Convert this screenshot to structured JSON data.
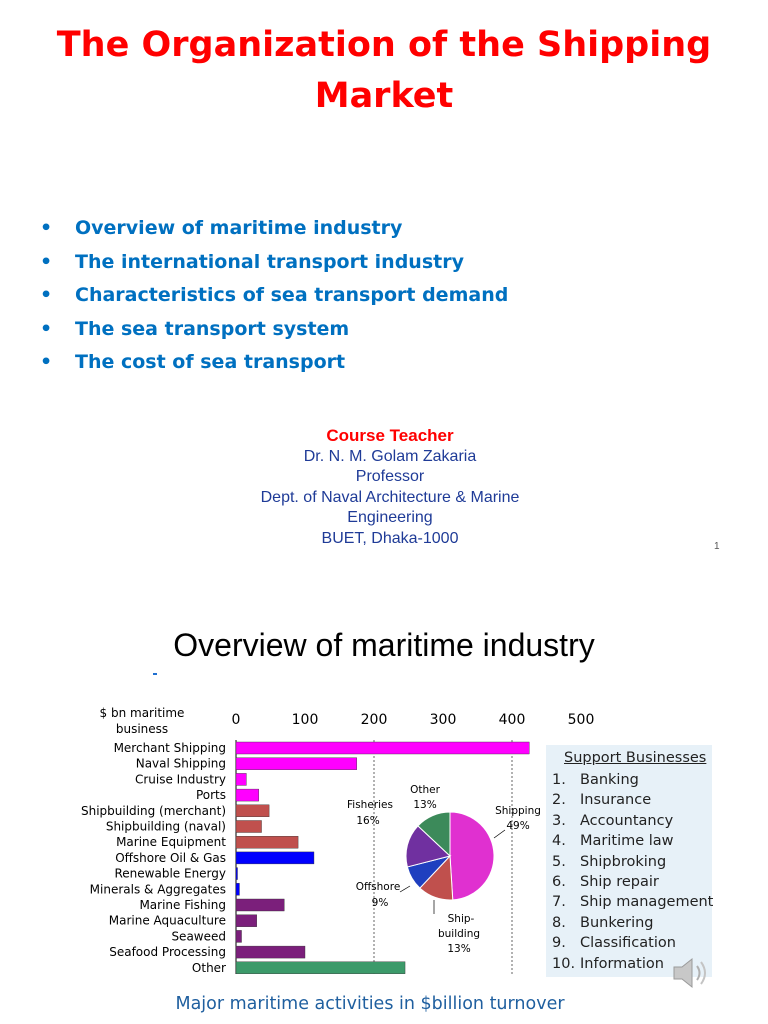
{
  "title": "The Organization of the Shipping Market",
  "bullets": [
    "Overview of maritime industry",
    "The international transport industry",
    "Characteristics of sea transport demand",
    "The sea transport system",
    "The cost of sea transport"
  ],
  "bullet_glyph": "•",
  "teacher": {
    "role": "Course Teacher",
    "name": "Dr. N. M. Golam Zakaria",
    "title": "Professor",
    "dept1": "Dept. of Naval Architecture & Marine",
    "dept2": "Engineering",
    "institution": "BUET, Dhaka-1000"
  },
  "page_number": "1",
  "section_title": "Overview of maritime industry",
  "support": {
    "heading": "Support Businesses",
    "items": [
      {
        "n": "1.",
        "label": "Banking"
      },
      {
        "n": "2.",
        "label": "Insurance"
      },
      {
        "n": "3.",
        "label": "Accountancy"
      },
      {
        "n": "4.",
        "label": "Maritime law"
      },
      {
        "n": "5.",
        "label": "Shipbroking"
      },
      {
        "n": "6.",
        "label": "Ship repair"
      },
      {
        "n": "7.",
        "label": "Ship management"
      },
      {
        "n": "8.",
        "label": "Bunkering"
      },
      {
        "n": "9.",
        "label": "Classification"
      },
      {
        "n": "10.",
        "label": "Information"
      }
    ]
  },
  "caption": "Major maritime activities in $billion turnover",
  "speaker_icon": "speaker-icon",
  "chart_data": [
    {
      "type": "bar",
      "orientation": "horizontal",
      "ylabel": "$ bn maritime business",
      "xlim": [
        0,
        500
      ],
      "xticks": [
        "0",
        "100",
        "200",
        "300",
        "400",
        "500"
      ],
      "grid": "dotted vertical at 200 and 400",
      "categories": [
        "Merchant Shipping",
        "Naval Shipping",
        "Cruise Industry",
        "Ports",
        "Shipbuilding (merchant)",
        "Shipbuilding (naval)",
        "Marine Equipment",
        "Offshore Oil & Gas",
        "Renewable Energy",
        "Minerals & Aggregates",
        "Marine Fishing",
        "Marine Aquaculture",
        "Seaweed",
        "Seafood Processing",
        "Other"
      ],
      "values": [
        425,
        175,
        15,
        33,
        48,
        37,
        90,
        113,
        1,
        5,
        70,
        30,
        8,
        100,
        245
      ],
      "colors": [
        "#ff00ff",
        "#ff00ff",
        "#ff00ff",
        "#ff00ff",
        "#c0504d",
        "#c0504d",
        "#c0504d",
        "#0000ff",
        "#0000ff",
        "#0000ff",
        "#7b1f7b",
        "#7b1f7b",
        "#7b1f7b",
        "#7b1f7b",
        "#3c9a6a"
      ]
    },
    {
      "type": "pie",
      "slices": [
        {
          "label": "Shipping",
          "pct_label": "49%",
          "value": 49,
          "color": "#e030d0"
        },
        {
          "label": "Ship-building",
          "pct_label": "13%",
          "value": 13,
          "color": "#c0504d"
        },
        {
          "label": "Offshore",
          "pct_label": "9%",
          "value": 9,
          "color": "#1f3fbf"
        },
        {
          "label": "Fisheries",
          "pct_label": "16%",
          "value": 16,
          "color": "#7030a0"
        },
        {
          "label": "Other",
          "pct_label": "13%",
          "value": 13,
          "color": "#3c8a5a"
        }
      ]
    }
  ]
}
